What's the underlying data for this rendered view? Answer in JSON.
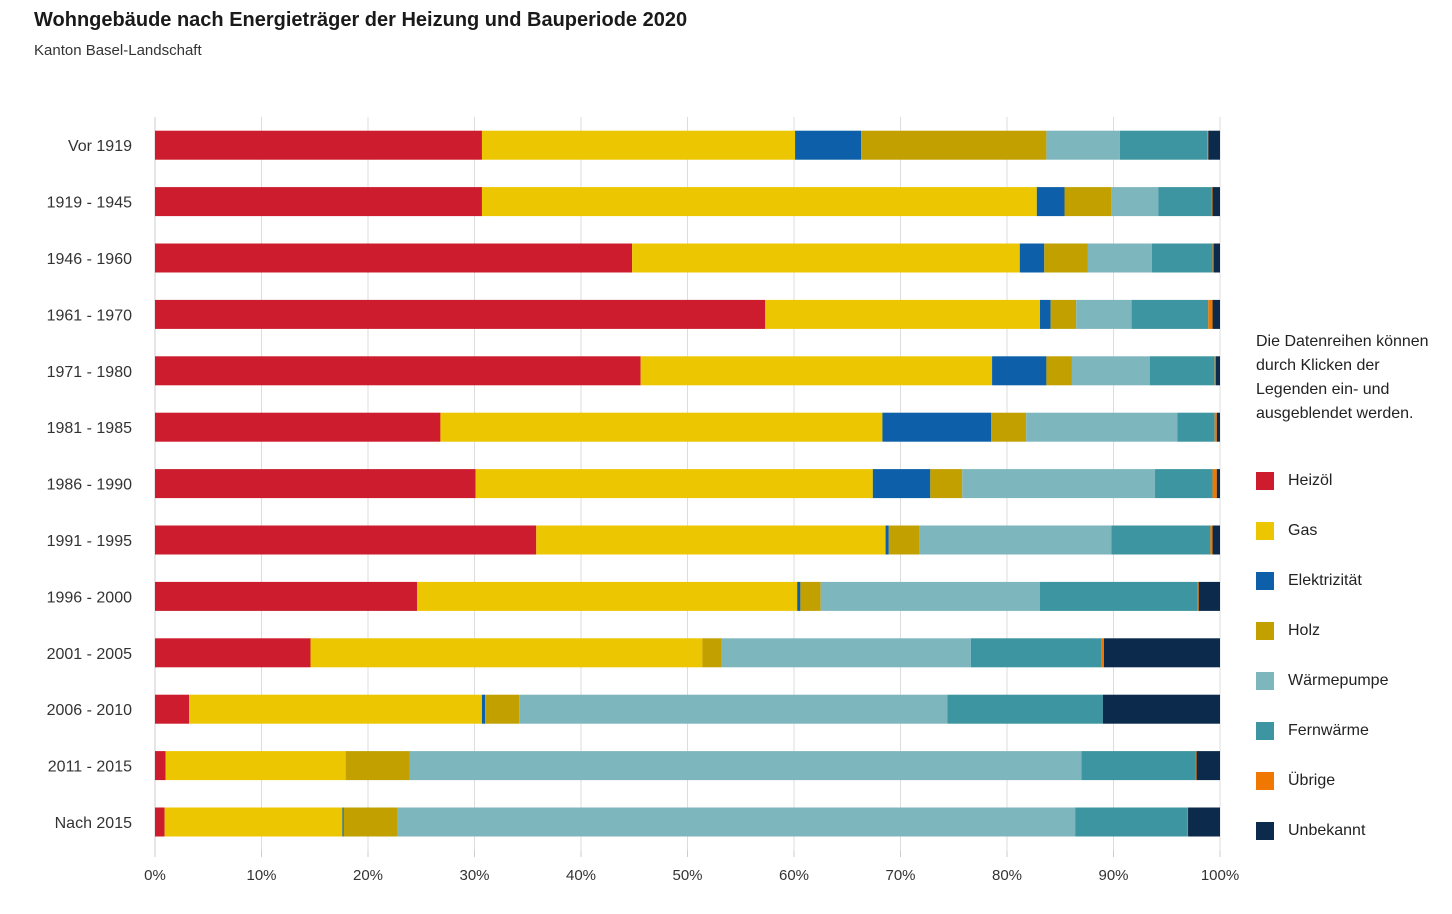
{
  "header": {
    "title": "Wohngebäude nach Energieträger der Heizung und Bauperiode 2020",
    "subtitle": "Kanton Basel-Landschaft"
  },
  "legend": {
    "note": "Die Datenreihen können durch Klicken der Legenden ein- und ausgeblendet werden."
  },
  "chart_data": {
    "type": "bar",
    "orientation": "horizontal",
    "stacking": "percent",
    "title": "Wohngebäude nach Energieträger der Heizung und Bauperiode 2020",
    "subtitle": "Kanton Basel-Landschaft",
    "categories": [
      "Vor 1919",
      "1919 - 1945",
      "1946 - 1960",
      "1961 - 1970",
      "1971 - 1980",
      "1981 - 1985",
      "1986 - 1990",
      "1991 - 1995",
      "1996 - 2000",
      "2001 - 2005",
      "2006 - 2010",
      "2011 - 2015",
      "Nach 2015"
    ],
    "xlim": [
      0,
      100
    ],
    "xticks": [
      "0%",
      "10%",
      "20%",
      "30%",
      "40%",
      "50%",
      "60%",
      "70%",
      "80%",
      "90%",
      "100%"
    ],
    "grid": true,
    "legend_position": "right",
    "series": [
      {
        "name": "Heizöl",
        "color": "#cc1c2e",
        "values": [
          30.7,
          30.7,
          44.8,
          57.3,
          45.6,
          26.8,
          30.1,
          35.8,
          24.6,
          14.6,
          3.2,
          1.0,
          0.9
        ]
      },
      {
        "name": "Gas",
        "color": "#ecc600",
        "values": [
          29.4,
          52.1,
          36.4,
          25.8,
          33.0,
          41.5,
          37.3,
          32.8,
          35.7,
          36.8,
          27.5,
          16.9,
          16.7
        ]
      },
      {
        "name": "Elektrizität",
        "color": "#0c5fa8",
        "values": [
          6.2,
          2.6,
          2.3,
          1.0,
          5.1,
          10.2,
          5.4,
          0.3,
          0.3,
          0.0,
          0.3,
          0.0,
          0.1
        ]
      },
      {
        "name": "Holz",
        "color": "#c2a000",
        "values": [
          17.4,
          4.4,
          4.1,
          2.4,
          2.4,
          3.3,
          3.0,
          2.9,
          1.9,
          1.8,
          3.2,
          6.0,
          5.1
        ]
      },
      {
        "name": "Wärmepumpe",
        "color": "#7eb6be",
        "values": [
          6.9,
          4.4,
          6.0,
          5.2,
          7.3,
          14.2,
          18.1,
          18.0,
          20.6,
          23.4,
          40.2,
          63.1,
          63.6
        ]
      },
      {
        "name": "Fernwärme",
        "color": "#3c95a0",
        "values": [
          8.2,
          5.0,
          5.7,
          7.2,
          6.1,
          3.5,
          5.4,
          9.3,
          14.8,
          12.3,
          14.6,
          10.7,
          10.5
        ]
      },
      {
        "name": "Übrige",
        "color": "#f07800",
        "values": [
          0.1,
          0.1,
          0.1,
          0.4,
          0.1,
          0.2,
          0.4,
          0.2,
          0.1,
          0.2,
          0.0,
          0.1,
          0.1
        ]
      },
      {
        "name": "Unbekannt",
        "color": "#0c2a4c",
        "values": [
          1.1,
          0.7,
          0.6,
          0.7,
          0.4,
          0.3,
          0.3,
          0.7,
          2.0,
          10.9,
          11.0,
          2.2,
          3.0
        ]
      }
    ]
  }
}
